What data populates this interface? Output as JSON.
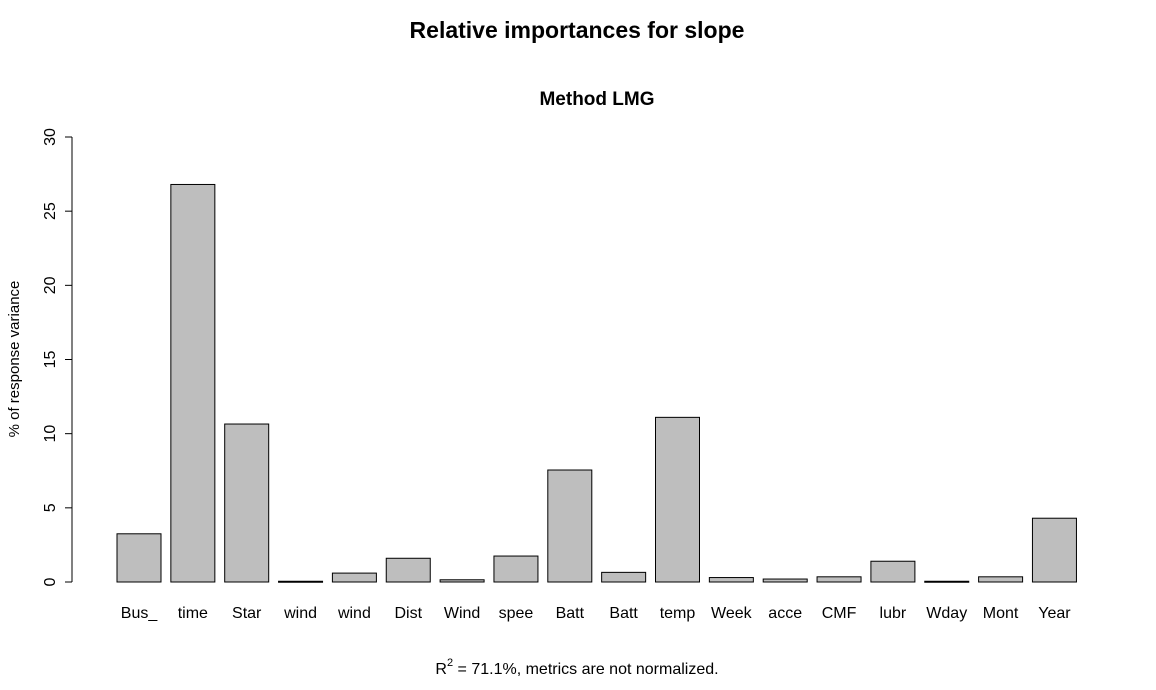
{
  "chart_data": {
    "type": "bar",
    "title": "Relative importances for slope",
    "subtitle": "Method LMG",
    "xlabel": "",
    "ylabel": "% of response variance",
    "ylim": [
      0,
      30
    ],
    "yticks": [
      0,
      5,
      10,
      15,
      20,
      25,
      30
    ],
    "ytick_labels": [
      "0",
      "5",
      "10",
      "15",
      "20",
      "25",
      "30"
    ],
    "categories": [
      "Bus_",
      "time",
      "Star",
      "wind",
      "wind",
      "Dist",
      "Wind",
      "spee",
      "Batt",
      "Batt",
      "temp",
      "Week",
      "acce",
      "CMF",
      "lubr",
      "Wday",
      "Mont",
      "Year"
    ],
    "values": [
      3.25,
      26.8,
      10.65,
      0.05,
      0.6,
      1.6,
      0.15,
      1.75,
      7.55,
      0.65,
      11.1,
      0.3,
      0.2,
      0.35,
      1.4,
      0.05,
      0.35,
      4.3
    ],
    "grid": false,
    "legend": "none",
    "bar_fill": "#bebebe",
    "bar_stroke": "#000000",
    "footnote": {
      "r_symbol": "R",
      "r_superscript": "2",
      "text": " = 71.1%, metrics are not normalized."
    }
  }
}
